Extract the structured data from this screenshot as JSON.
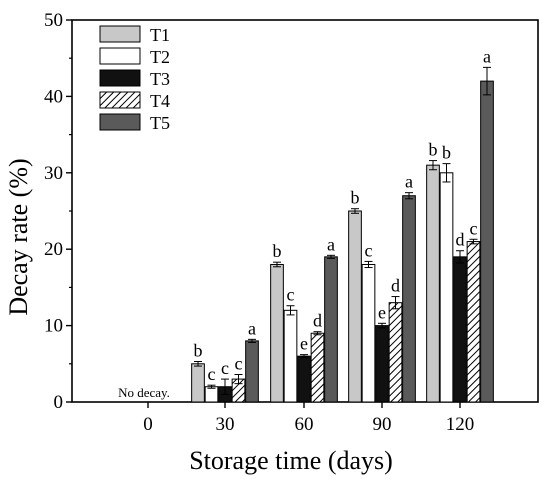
{
  "chart_data": {
    "type": "bar",
    "xlabel": "Storage time (days)",
    "ylabel": "Decay rate (%)",
    "ylim": [
      0,
      50
    ],
    "yticks": [
      0,
      10,
      20,
      30,
      40,
      50
    ],
    "categories": [
      "0",
      "30",
      "60",
      "90",
      "120"
    ],
    "grid": false,
    "legend_position": "top-left",
    "series": [
      {
        "name": "T1",
        "pattern": "solid",
        "color": "#c8c8c8",
        "values": [
          0,
          5,
          18,
          25,
          31
        ],
        "errors": [
          0,
          0.3,
          0.3,
          0.3,
          0.6
        ],
        "labels": [
          "",
          "b",
          "b",
          "b",
          "b"
        ]
      },
      {
        "name": "T2",
        "pattern": "solid",
        "color": "#ffffff",
        "values": [
          0,
          2,
          12,
          18,
          30
        ],
        "errors": [
          0,
          0.2,
          0.6,
          0.4,
          1.2
        ],
        "labels": [
          "",
          "c",
          "c",
          "c",
          "b"
        ]
      },
      {
        "name": "T3",
        "pattern": "solid",
        "color": "#111111",
        "values": [
          0,
          2,
          6,
          10,
          19
        ],
        "errors": [
          0,
          1.0,
          0.2,
          0.3,
          0.8
        ],
        "labels": [
          "",
          "c",
          "e",
          "e",
          "d"
        ]
      },
      {
        "name": "T4",
        "pattern": "hatch",
        "color": "#ffffff",
        "values": [
          0,
          3,
          9,
          13,
          21
        ],
        "errors": [
          0,
          0.6,
          0.2,
          0.8,
          0.3
        ],
        "labels": [
          "",
          "c",
          "d",
          "d",
          "c"
        ]
      },
      {
        "name": "T5",
        "pattern": "solid",
        "color": "#5a5a5a",
        "values": [
          0,
          8,
          19,
          27,
          42
        ],
        "errors": [
          0,
          0.2,
          0.2,
          0.4,
          1.8
        ],
        "labels": [
          "",
          "a",
          "a",
          "a",
          "a"
        ]
      }
    ],
    "annotations": [
      {
        "category": "0",
        "text": "No decay."
      }
    ]
  }
}
